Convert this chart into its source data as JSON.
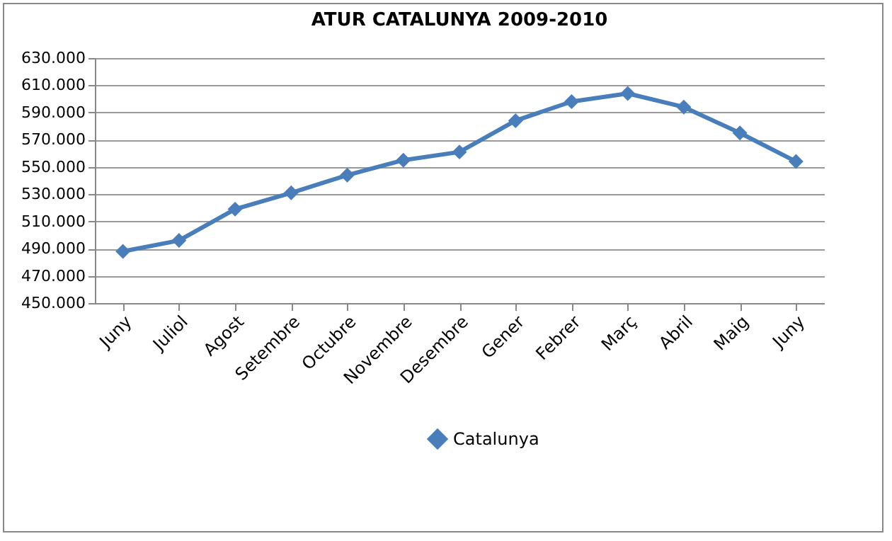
{
  "chart_data": {
    "type": "line",
    "title": "ATUR CATALUNYA 2009-2010",
    "categories": [
      "Juny",
      "Juliol",
      "Agost",
      "Setembre",
      "Octubre",
      "Novembre",
      "Desembre",
      "Gener",
      "Febrer",
      "Març",
      "Abril",
      "Maig",
      "Juny"
    ],
    "series": [
      {
        "name": "Catalunya",
        "color": "#4a7ebb",
        "values": [
          488000,
          496000,
          519000,
          531000,
          544000,
          555000,
          561000,
          584000,
          598000,
          604000,
          594000,
          575000,
          554000
        ]
      }
    ],
    "ylim": [
      450000,
      630000
    ],
    "yticks": [
      {
        "value": 450000,
        "label": "450.000"
      },
      {
        "value": 470000,
        "label": "470.000"
      },
      {
        "value": 490000,
        "label": "490.000"
      },
      {
        "value": 510000,
        "label": "510.000"
      },
      {
        "value": 530000,
        "label": "530.000"
      },
      {
        "value": 550000,
        "label": "550.000"
      },
      {
        "value": 570000,
        "label": "570.000"
      },
      {
        "value": 590000,
        "label": "590.000"
      },
      {
        "value": 610000,
        "label": "610.000"
      },
      {
        "value": 630000,
        "label": "630.000"
      }
    ],
    "grid": "y",
    "legend": "bottom",
    "marker": "diamond",
    "line_style": "solid"
  }
}
